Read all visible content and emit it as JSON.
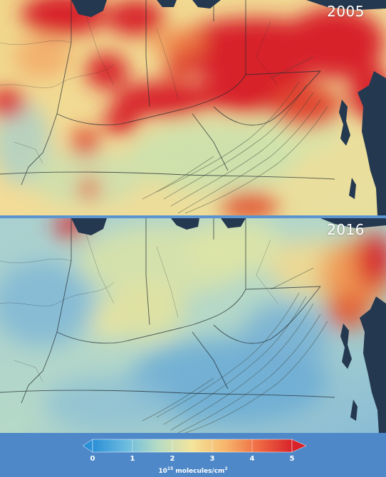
{
  "panels": [
    {
      "year": "2005"
    },
    {
      "year": "2016"
    }
  ],
  "legend": {
    "min": 0,
    "max": 5,
    "ticks": [
      "0",
      "1",
      "2",
      "3",
      "4",
      "5"
    ],
    "units_base": "10",
    "units_exp": "15",
    "units_rest": " molecules/cm",
    "units_sq": "2",
    "gradient": [
      "#2b8fd6",
      "#6bbbe0",
      "#b7dcc2",
      "#f4e49a",
      "#f6b56a",
      "#ef6a43",
      "#d8232a"
    ]
  },
  "colors": {
    "water": "#243850",
    "legend_bg": "#4e88c8",
    "high": "#d8232a",
    "low": "#6fa9cf"
  },
  "map_features": {
    "water_bodies": [
      "lake-michigan",
      "lake-erie",
      "chesapeake-bay",
      "atlantic-ocean"
    ],
    "layers": [
      "state-borders",
      "rivers",
      "terrain-relief"
    ]
  }
}
